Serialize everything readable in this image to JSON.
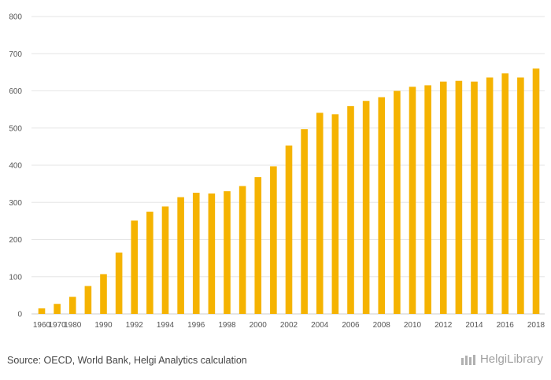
{
  "chart_data": {
    "type": "bar",
    "title": "",
    "xlabel": "",
    "ylabel": "",
    "ylim": [
      0,
      800
    ],
    "yticks": [
      0,
      100,
      200,
      300,
      400,
      500,
      600,
      700,
      800
    ],
    "grid": true,
    "bar_color": "#f5b301",
    "categories": [
      "1960",
      "1970",
      "1980",
      "1989",
      "1990",
      "1991",
      "1992",
      "1993",
      "1994",
      "1995",
      "1996",
      "1997",
      "1998",
      "1999",
      "2000",
      "2001",
      "2002",
      "2003",
      "2004",
      "2005",
      "2006",
      "2007",
      "2008",
      "2009",
      "2010",
      "2011",
      "2012",
      "2013",
      "2014",
      "2015",
      "2016",
      "2017",
      "2018"
    ],
    "xtick_labels": [
      "1960",
      "1970",
      "1980",
      "1990",
      "1992",
      "1994",
      "1996",
      "1998",
      "2000",
      "2002",
      "2004",
      "2006",
      "2008",
      "2010",
      "2012",
      "2014",
      "2016",
      "2018"
    ],
    "values": [
      15,
      27,
      46,
      75,
      107,
      165,
      251,
      275,
      289,
      314,
      326,
      324,
      330,
      344,
      368,
      397,
      453,
      497,
      541,
      537,
      559,
      573,
      583,
      600,
      611,
      615,
      625,
      627,
      625,
      636,
      647,
      636,
      660
    ]
  },
  "footer": {
    "source": "Source: OECD, World Bank, Helgi Analytics calculation",
    "brand": "HelgiLibrary"
  }
}
